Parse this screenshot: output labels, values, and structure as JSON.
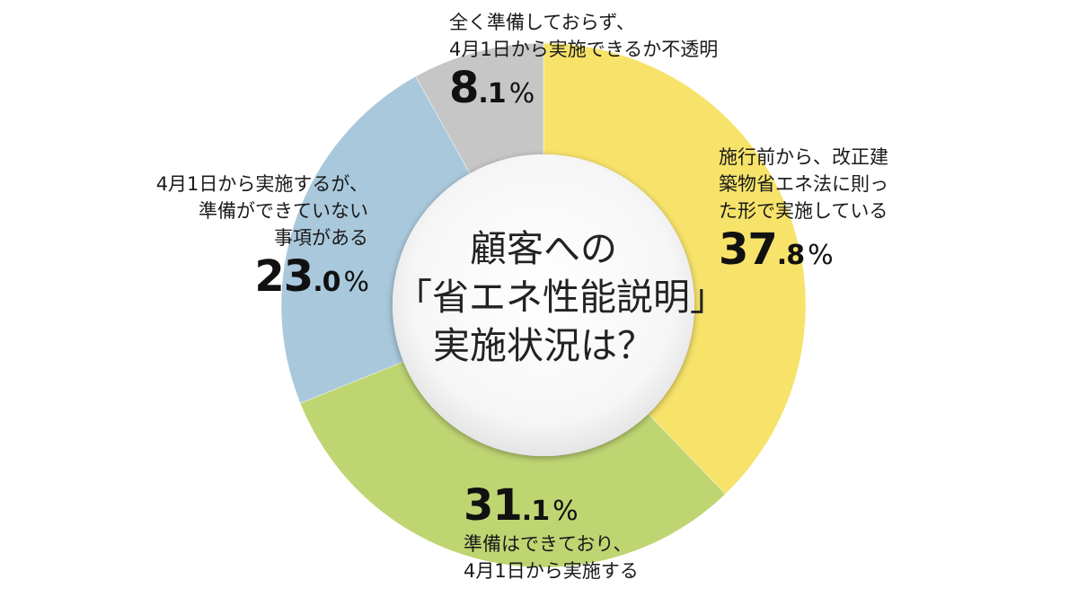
{
  "chart_data": {
    "type": "pie",
    "style": "donut",
    "title": "顧客への「省エネ性能説明」実施状況は？",
    "title_lines": [
      "顧客への",
      "「省エネ性能説明」",
      "実施状況は？"
    ],
    "unit": "%",
    "slices": [
      {
        "label_lines": [
          "施行前から、改正建",
          "築物省エネ法に則っ",
          "た形で実施している"
        ],
        "value": 37.8,
        "value_int": "37",
        "value_dec": ".8",
        "color": "#f7e36a"
      },
      {
        "label_lines": [
          "準備はできており、",
          "4月1日から実施する"
        ],
        "value": 31.1,
        "value_int": "31",
        "value_dec": ".1",
        "color": "#bfd572"
      },
      {
        "label_lines": [
          "4月1日から実施するが、",
          "準備ができていない",
          "事項がある"
        ],
        "value": 23.0,
        "value_int": "23",
        "value_dec": ".0",
        "color": "#a9c8dc"
      },
      {
        "label_lines": [
          "全く準備しておらず、",
          "4月1日から実施できるか不透明"
        ],
        "value": 8.1,
        "value_int": "8",
        "value_dec": ".1",
        "color": "#c6c6c6"
      }
    ]
  }
}
